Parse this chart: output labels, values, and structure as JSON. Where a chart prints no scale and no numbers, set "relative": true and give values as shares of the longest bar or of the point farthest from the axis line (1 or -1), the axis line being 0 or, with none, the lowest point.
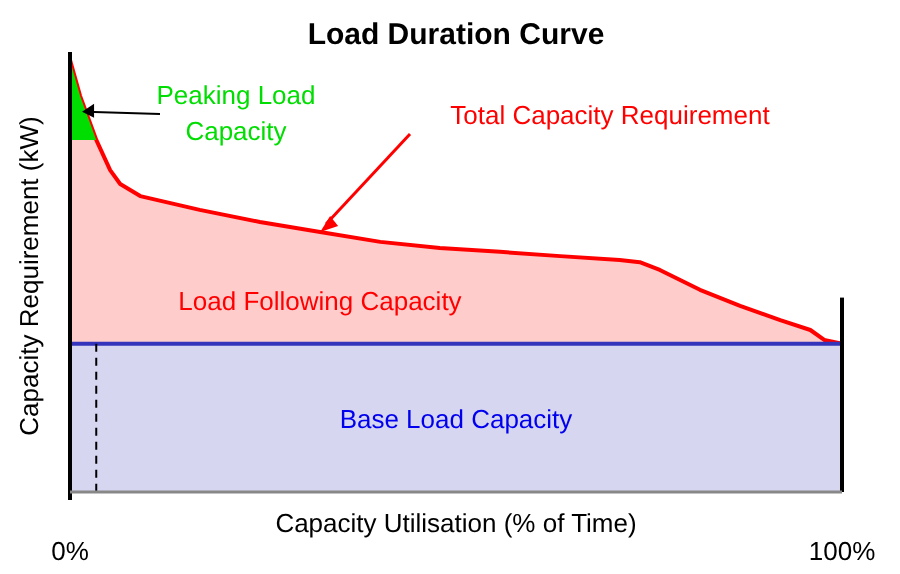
{
  "chart_data": {
    "type": "area",
    "title": "Load Duration Curve",
    "xlabel": "Capacity Utilisation (% of Time)",
    "ylabel": "Capacity Requirement (kW)",
    "relative": true,
    "xlim": [
      0,
      100
    ],
    "xticks": [
      {
        "value": 0,
        "label": "0%"
      },
      {
        "value": 100,
        "label": "100%"
      }
    ],
    "series": [
      {
        "name": "Base Load Capacity",
        "color": "#3333bb",
        "x": [
          0,
          100
        ],
        "values": [
          0.343,
          0.343
        ]
      },
      {
        "name": "Total Capacity Requirement",
        "color": "#ff0000",
        "x": [
          0,
          1.3,
          3.4,
          5.2,
          6.5,
          9.1,
          16.8,
          24.6,
          32.4,
          40.2,
          47.9,
          55.7,
          63.5,
          71.2,
          73.8,
          76.4,
          81.6,
          86.8,
          92,
          95.9,
          97.7,
          100
        ],
        "values": [
          1,
          0.917,
          0.815,
          0.745,
          0.713,
          0.685,
          0.653,
          0.625,
          0.602,
          0.579,
          0.565,
          0.556,
          0.546,
          0.537,
          0.532,
          0.514,
          0.468,
          0.431,
          0.398,
          0.375,
          0.352,
          0.343
        ]
      },
      {
        "name": "Peaking Load Capacity",
        "color": "#00dd00",
        "x": [
          0,
          1.3,
          3.4
        ],
        "values": [
          1,
          0.917,
          0.815
        ],
        "type": "area"
      }
    ],
    "annotations": [
      "Load Following Capacity"
    ],
    "ref_lines": [
      {
        "axis": "x",
        "value": 3.4,
        "line_style": "dashed",
        "color": "#000000"
      },
      {
        "axis": "x",
        "value": 100,
        "line_style": "solid",
        "color": "#000000"
      }
    ]
  }
}
